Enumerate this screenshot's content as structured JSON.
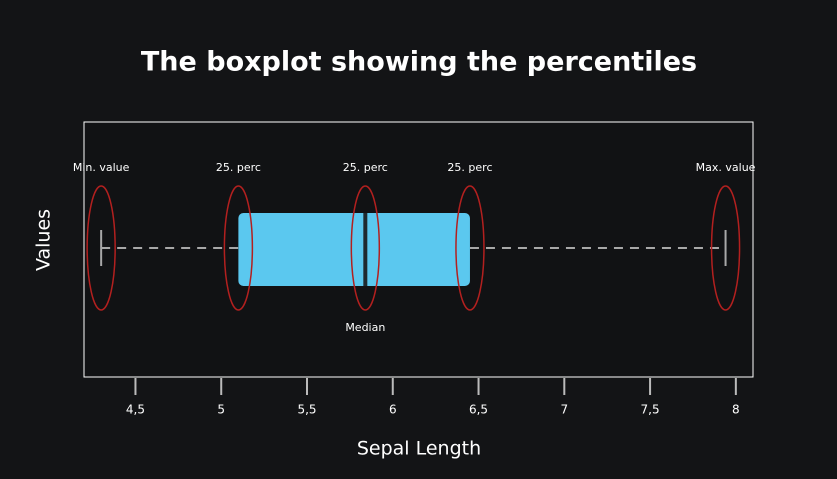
{
  "chart_data": {
    "type": "boxplot",
    "title": "The boxplot showing the percentiles",
    "x_label": "Sepal Length",
    "y_label": "Values",
    "stats": {
      "min": 4.3,
      "q1": 5.1,
      "median": 5.84,
      "q3": 6.45,
      "max": 7.94
    },
    "color": "#5bc8ef",
    "median_color": "#1e2a2f",
    "whisker_color": "#a8a8a8",
    "highlight_color": "#b3201f",
    "annotations": [
      "Min. value",
      "25. perc",
      "25. perc",
      "25. perc",
      "Max. value"
    ],
    "median_label": "Median",
    "xlim": [
      4.2,
      8.1
    ],
    "xticks": [
      {
        "value": 4.5,
        "label": "4,5"
      },
      5,
      {
        "value": 5.5,
        "label": "5,5"
      },
      6,
      {
        "value": 6.5,
        "label": "6,5"
      },
      7,
      {
        "value": 7.5,
        "label": "7,5"
      },
      8
    ]
  }
}
